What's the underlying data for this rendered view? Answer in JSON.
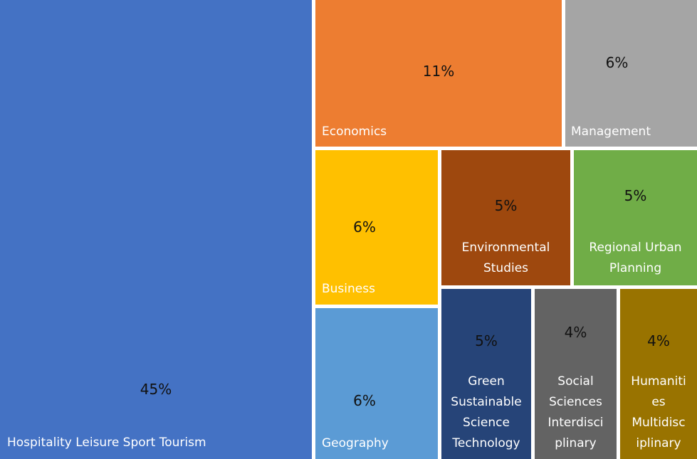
{
  "chart_data": {
    "type": "treemap",
    "title": "",
    "items": [
      {
        "name": "Hospitality Leisure Sport Tourism",
        "value": 45,
        "label": "45%",
        "color": "#4472C4"
      },
      {
        "name": "Economics",
        "value": 11,
        "label": "11%",
        "color": "#ED7D31"
      },
      {
        "name": "Management",
        "value": 6,
        "label": "6%",
        "color": "#A5A5A5"
      },
      {
        "name": "Business",
        "value": 6,
        "label": "6%",
        "color": "#FFC000"
      },
      {
        "name": "Geography",
        "value": 6,
        "label": "6%",
        "color": "#5B9BD5"
      },
      {
        "name": "Environmental Studies",
        "value": 5,
        "label": "5%",
        "color": "#9E480E"
      },
      {
        "name": "Regional Urban Planning",
        "value": 5,
        "label": "5%",
        "color": "#70AD47"
      },
      {
        "name": "Green Sustainable Science Technology",
        "value": 5,
        "label": "5%",
        "color": "#264478"
      },
      {
        "name": "Social Sciences Interdisciplinary",
        "value": 4,
        "label": "4%",
        "color": "#636363"
      },
      {
        "name": "Humanities Multidisciplinary",
        "value": 4,
        "label": "4%",
        "color": "#997300"
      }
    ]
  }
}
